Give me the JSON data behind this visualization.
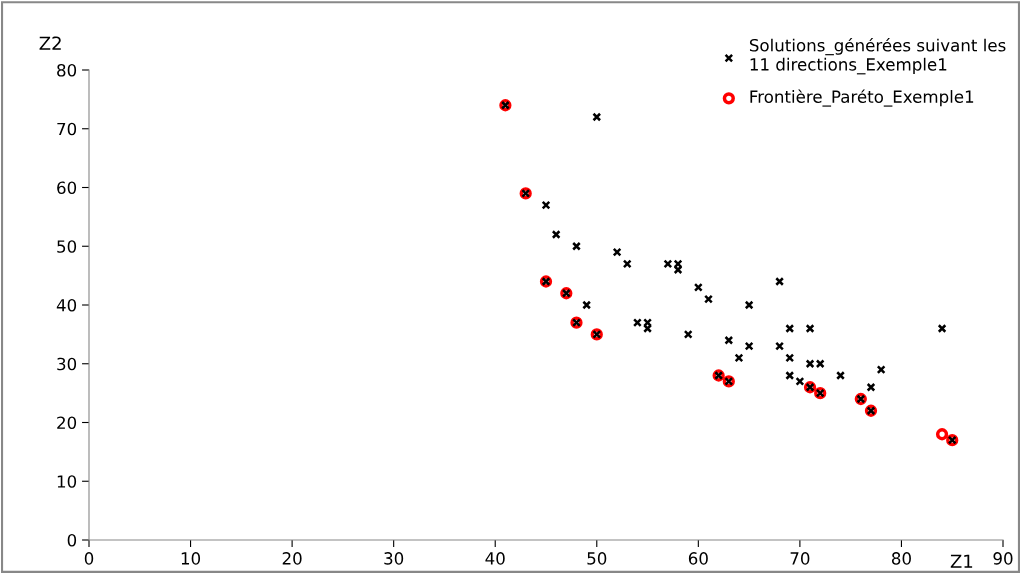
{
  "chart_data": {
    "type": "scatter",
    "xlabel": "Z1",
    "ylabel": "Z2",
    "xlim": [
      0,
      90
    ],
    "xticks": [
      0,
      10,
      20,
      30,
      40,
      50,
      60,
      70,
      80,
      90
    ],
    "ylim": [
      0,
      80
    ],
    "yticks": [
      0,
      10,
      20,
      30,
      40,
      50,
      60,
      70,
      80
    ],
    "grid": false,
    "legend": "top right",
    "series": [
      {
        "name": "Solutions_générées suivant les\n11 directions_Exemple1",
        "color": "#000000",
        "marker": "cross",
        "x": [
          41,
          43,
          45,
          47,
          48,
          50,
          62,
          63,
          71,
          72,
          76,
          77,
          85,
          50,
          45,
          46,
          48,
          49,
          52,
          53,
          54,
          55,
          55,
          57,
          58,
          58,
          59,
          60,
          61,
          63,
          64,
          65,
          65,
          68,
          68,
          69,
          69,
          69,
          70,
          71,
          71,
          72,
          74,
          77,
          78,
          84
        ],
        "values": [
          74,
          59,
          44,
          42,
          37,
          35,
          28,
          27,
          26,
          25,
          24,
          22,
          17,
          72,
          57,
          52,
          50,
          40,
          49,
          47,
          37,
          37,
          36,
          47,
          47,
          46,
          35,
          43,
          41,
          34,
          31,
          40,
          33,
          44,
          33,
          36,
          31,
          28,
          27,
          36,
          30,
          30,
          28,
          26,
          29,
          36
        ]
      },
      {
        "name": "Frontière_Paréto_Exemple1",
        "color": "#ff0000",
        "marker": "circle",
        "x": [
          41,
          43,
          45,
          47,
          48,
          50,
          62,
          63,
          71,
          72,
          76,
          77,
          84,
          85
        ],
        "values": [
          74,
          59,
          44,
          42,
          37,
          35,
          28,
          27,
          26,
          25,
          24,
          22,
          18,
          17
        ]
      }
    ]
  }
}
